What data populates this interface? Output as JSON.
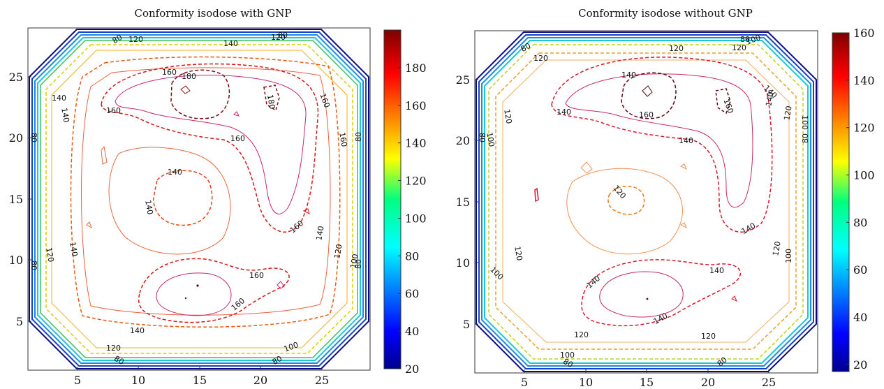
{
  "chart_data": [
    {
      "type": "contour",
      "title": "Conformity isodose with GNP",
      "xlim": [
        1,
        29
      ],
      "ylim": [
        1,
        29
      ],
      "xticks": [
        "5",
        "10",
        "15",
        "20",
        "25"
      ],
      "yticks": [
        "5",
        "10",
        "15",
        "20",
        "25"
      ],
      "colorbar": {
        "range": [
          20,
          200
        ],
        "ticks": [
          "20",
          "40",
          "60",
          "80",
          "100",
          "120",
          "140",
          "160",
          "180"
        ]
      },
      "contour_labels": [
        "180",
        "180",
        "160",
        "160",
        "160",
        "160",
        "160",
        "160",
        "160",
        "160",
        "140",
        "140",
        "140",
        "140",
        "140",
        "140",
        "140",
        "140",
        "120",
        "120",
        "120",
        "120",
        "120",
        "100",
        "100",
        "80",
        "80",
        "80",
        "80",
        "80",
        "80",
        "80",
        "80"
      ]
    },
    {
      "type": "contour",
      "title": "Conformity isodose without GNP",
      "xlim": [
        1,
        29
      ],
      "ylim": [
        1,
        29
      ],
      "xticks": [
        "5",
        "10",
        "15",
        "20",
        "25"
      ],
      "yticks": [
        "5",
        "10",
        "15",
        "20",
        "25"
      ],
      "colorbar": {
        "range": [
          17,
          160
        ],
        "ticks": [
          "20",
          "40",
          "60",
          "80",
          "100",
          "120",
          "140",
          "160"
        ]
      },
      "contour_labels": [
        "160",
        "160",
        "140",
        "140",
        "140",
        "140",
        "140",
        "140",
        "140",
        "140",
        "140",
        "120",
        "120",
        "120",
        "120",
        "120",
        "120",
        "120",
        "120",
        "120",
        "120",
        "100",
        "100",
        "100",
        "100",
        "100",
        "100",
        "80",
        "80",
        "80",
        "80",
        "80",
        "80"
      ]
    }
  ]
}
